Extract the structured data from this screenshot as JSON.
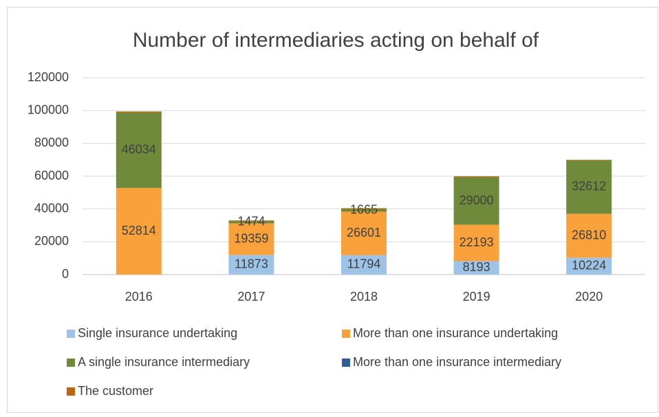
{
  "chart_data": {
    "type": "stacked_bar",
    "title": "Number of intermediaries acting on behalf of",
    "categories": [
      "2016",
      "2017",
      "2018",
      "2019",
      "2020"
    ],
    "series": [
      {
        "name": "Single insurance undertaking",
        "color": "#9dc3e6",
        "values": [
          0,
          11873,
          11794,
          8193,
          10224
        ],
        "data_labels": true
      },
      {
        "name": "More than one insurance undertaking",
        "color": "#f9a13a",
        "values": [
          52814,
          19359,
          26601,
          22193,
          26810
        ],
        "data_labels": true
      },
      {
        "name": "A single insurance intermediary",
        "color": "#708a3c",
        "values": [
          46034,
          1474,
          1665,
          29000,
          32612
        ],
        "data_labels": true
      },
      {
        "name": "More than one insurance intermediary",
        "color": "#2e5e95",
        "values": [
          0,
          0,
          0,
          0,
          0
        ],
        "data_labels": false
      },
      {
        "name": "The customer",
        "color": "#c0640f",
        "values": [
          600,
          300,
          400,
          500,
          300
        ],
        "data_labels": false
      }
    ],
    "ylim": [
      0,
      120000
    ],
    "yticks": [
      0,
      20000,
      40000,
      60000,
      80000,
      100000,
      120000
    ],
    "grid": true,
    "legend": "bottom"
  }
}
